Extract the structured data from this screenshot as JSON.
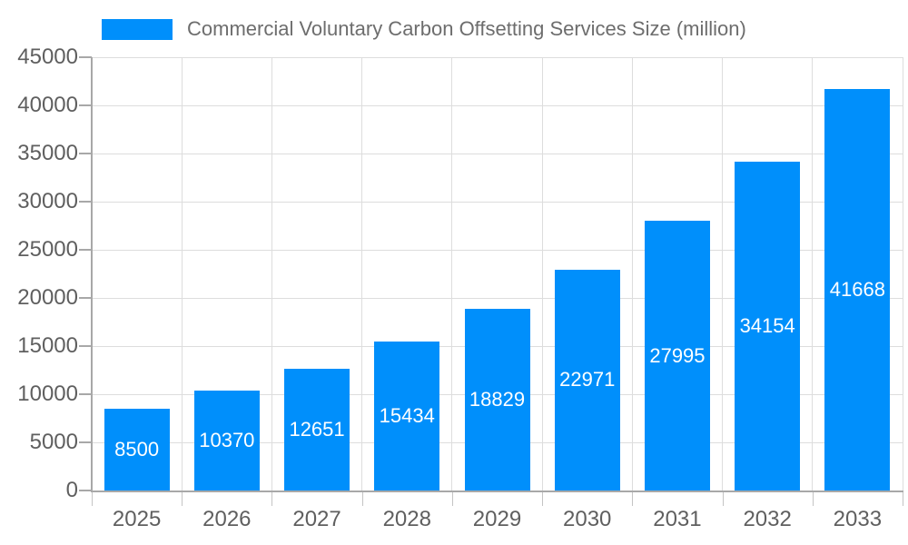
{
  "legend": {
    "series_label": "Commercial Voluntary Carbon Offsetting Services Size (million)"
  },
  "colors": {
    "bar": "#008FFB",
    "grid": "#dddddd",
    "axis": "#a8a8a8",
    "axis_label": "#5f5f5f",
    "legend_label": "#6d6d6d",
    "value_label": "#ffffff",
    "background": "#ffffff"
  },
  "chart_data": {
    "type": "bar",
    "title": "Commercial Voluntary Carbon Offsetting Services Size (million)",
    "categories": [
      "2025",
      "2026",
      "2027",
      "2028",
      "2029",
      "2030",
      "2031",
      "2032",
      "2033"
    ],
    "values": [
      8500,
      10370,
      12651,
      15434,
      18829,
      22971,
      27995,
      34154,
      41668
    ],
    "series_name": "Commercial Voluntary Carbon Offsetting Services Size (million)",
    "xlabel": "",
    "ylabel": "",
    "ylim": [
      0,
      45000
    ],
    "ytick_step": 5000,
    "yticklabels": [
      "0",
      "5000",
      "10000",
      "15000",
      "20000",
      "25000",
      "30000",
      "35000",
      "40000",
      "45000"
    ],
    "grid": true,
    "legend_position": "top-left",
    "bar_color": "#008FFB",
    "value_labels": {
      "color": "#ffffff",
      "position": "center-of-bar"
    }
  }
}
